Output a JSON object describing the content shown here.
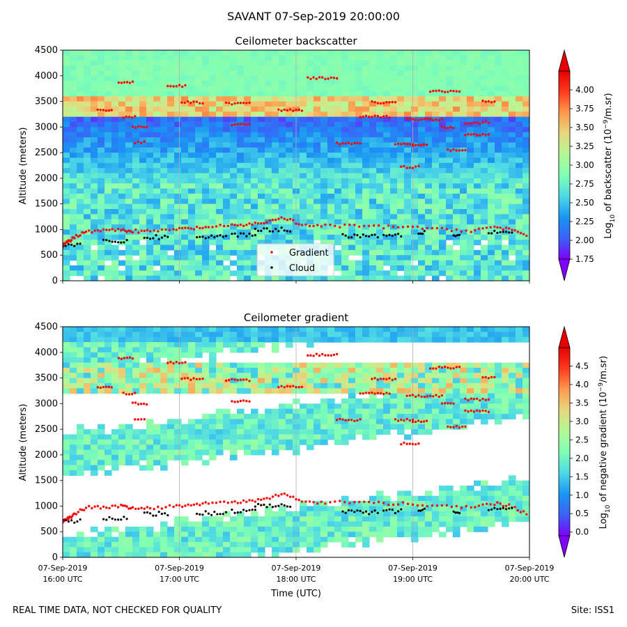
{
  "suptitle": "SAVANT 07-Sep-2019 20:00:00",
  "footer": {
    "note": "REAL TIME DATA, NOT CHECKED FOR QUALITY",
    "site": "Site: ISS1"
  },
  "colors": {
    "gradient_markers": "#ff0000",
    "cloud_markers": "#000000",
    "colormap": [
      "#7f00ff",
      "#3b62f6",
      "#1996f3",
      "#4dd8e6",
      "#80ffb4",
      "#b3f896",
      "#e6d87e",
      "#ff9a4d",
      "#ff3b1e",
      "#e60000"
    ]
  },
  "chart_data": [
    {
      "type": "heatmap",
      "title": "Ceilometer backscatter",
      "xlabel": "",
      "ylabel": "Altitude (meters)",
      "ylim": [
        0,
        4500
      ],
      "xlim": [
        "07-Sep-2019 16:00 UTC",
        "07-Sep-2019 20:00 UTC"
      ],
      "yticks": [
        "0",
        "500",
        "1000",
        "1500",
        "2000",
        "2500",
        "3000",
        "3500",
        "4000",
        "4500"
      ],
      "colorbar": {
        "label_pre": "Log",
        "label_sub": "10",
        "label_mid": " of backscatter (10",
        "label_sup": "−9",
        "label_post": "/m.sr)",
        "range": [
          1.75,
          4.25
        ],
        "ticks": [
          "1.75",
          "2.00",
          "2.25",
          "2.50",
          "2.75",
          "3.00",
          "3.25",
          "3.50",
          "3.75",
          "4.00"
        ]
      },
      "legend": {
        "position": "lower center",
        "entries": [
          {
            "name": "Gradient",
            "color": "#ff0000"
          },
          {
            "name": "Cloud",
            "color": "#000000"
          }
        ]
      },
      "grid": "vertical only"
    },
    {
      "type": "heatmap",
      "title": "Ceilometer gradient",
      "xlabel": "Time (UTC)",
      "ylabel": "Altitude (meters)",
      "ylim": [
        0,
        4500
      ],
      "yticks": [
        "0",
        "500",
        "1000",
        "1500",
        "2000",
        "2500",
        "3000",
        "3500",
        "4000",
        "4500"
      ],
      "xticks": [
        {
          "date": "07-Sep-2019",
          "time": "16:00 UTC"
        },
        {
          "date": "07-Sep-2019",
          "time": "17:00 UTC"
        },
        {
          "date": "07-Sep-2019",
          "time": "18:00 UTC"
        },
        {
          "date": "07-Sep-2019",
          "time": "19:00 UTC"
        },
        {
          "date": "07-Sep-2019",
          "time": "20:00 UTC"
        }
      ],
      "colorbar": {
        "label_pre": "Log",
        "label_sub": "10",
        "label_mid": " of negative gradient (10",
        "label_sup": "−9",
        "label_post": "/m.sr)",
        "range": [
          -0.1,
          5.0
        ],
        "ticks": [
          "0.0",
          "0.5",
          "1.0",
          "1.5",
          "2.0",
          "2.5",
          "3.0",
          "3.5",
          "4.0",
          "4.5"
        ]
      },
      "grid": "vertical only"
    }
  ],
  "series": {
    "boundary_layer_gradient": [
      {
        "t": 0.0,
        "alt": 700
      },
      {
        "t": 0.05,
        "alt": 760
      },
      {
        "t": 0.1,
        "alt": 850
      },
      {
        "t": 0.2,
        "alt": 970
      },
      {
        "t": 0.35,
        "alt": 980
      },
      {
        "t": 0.5,
        "alt": 1000
      },
      {
        "t": 0.6,
        "alt": 970
      },
      {
        "t": 0.75,
        "alt": 960
      },
      {
        "t": 0.95,
        "alt": 1000
      },
      {
        "t": 1.1,
        "alt": 1020
      },
      {
        "t": 1.25,
        "alt": 1050
      },
      {
        "t": 1.45,
        "alt": 1070
      },
      {
        "t": 1.6,
        "alt": 1100
      },
      {
        "t": 1.75,
        "alt": 1150
      },
      {
        "t": 1.9,
        "alt": 1230
      },
      {
        "t": 2.05,
        "alt": 1080
      },
      {
        "t": 2.25,
        "alt": 1070
      },
      {
        "t": 2.5,
        "alt": 1070
      },
      {
        "t": 2.75,
        "alt": 1050
      },
      {
        "t": 3.0,
        "alt": 1050
      },
      {
        "t": 3.25,
        "alt": 1000
      },
      {
        "t": 3.5,
        "alt": 980
      },
      {
        "t": 3.7,
        "alt": 1050
      },
      {
        "t": 3.85,
        "alt": 1000
      },
      {
        "t": 4.0,
        "alt": 820
      }
    ],
    "high_layers_gradient": [
      {
        "t0": 0.3,
        "t1": 0.42,
        "alt": 3330
      },
      {
        "t0": 0.52,
        "t1": 0.62,
        "alt": 3200
      },
      {
        "t0": 0.6,
        "t1": 0.72,
        "alt": 3000
      },
      {
        "t0": 0.62,
        "t1": 0.7,
        "alt": 2700
      },
      {
        "t0": 0.48,
        "t1": 0.6,
        "alt": 3880
      },
      {
        "t0": 0.9,
        "t1": 1.05,
        "alt": 3800
      },
      {
        "t0": 1.02,
        "t1": 1.2,
        "alt": 3480
      },
      {
        "t0": 1.4,
        "t1": 1.6,
        "alt": 3460
      },
      {
        "t0": 1.45,
        "t1": 1.6,
        "alt": 3050
      },
      {
        "t0": 2.1,
        "t1": 2.35,
        "alt": 3950
      },
      {
        "t0": 2.35,
        "t1": 2.55,
        "alt": 2680
      },
      {
        "t0": 2.55,
        "t1": 2.8,
        "alt": 3200
      },
      {
        "t0": 2.85,
        "t1": 3.0,
        "alt": 2680
      },
      {
        "t0": 2.9,
        "t1": 3.05,
        "alt": 2220
      },
      {
        "t0": 2.95,
        "t1": 3.25,
        "alt": 3150
      },
      {
        "t0": 3.15,
        "t1": 3.4,
        "alt": 3700
      },
      {
        "t0": 3.25,
        "t1": 3.35,
        "alt": 3000
      },
      {
        "t0": 3.45,
        "t1": 3.65,
        "alt": 3080
      },
      {
        "t0": 3.45,
        "t1": 3.65,
        "alt": 2850
      },
      {
        "t0": 3.6,
        "t1": 3.7,
        "alt": 3500
      },
      {
        "t0": 3.3,
        "t1": 3.45,
        "alt": 2550
      },
      {
        "t0": 2.65,
        "t1": 2.85,
        "alt": 3480
      },
      {
        "t0": 3.0,
        "t1": 3.12,
        "alt": 2650
      },
      {
        "t0": 1.85,
        "t1": 2.05,
        "alt": 3330
      }
    ],
    "cloud_base": [
      {
        "t0": 0.0,
        "t1": 0.15,
        "alt": 700
      },
      {
        "t0": 0.35,
        "t1": 0.55,
        "alt": 760
      },
      {
        "t0": 0.7,
        "t1": 0.9,
        "alt": 850
      },
      {
        "t0": 1.15,
        "t1": 1.4,
        "alt": 860
      },
      {
        "t0": 1.45,
        "t1": 1.65,
        "alt": 900
      },
      {
        "t0": 1.65,
        "t1": 1.95,
        "alt": 1000
      },
      {
        "t0": 2.4,
        "t1": 2.7,
        "alt": 880
      },
      {
        "t0": 2.75,
        "t1": 2.9,
        "alt": 900
      },
      {
        "t0": 3.05,
        "t1": 3.1,
        "alt": 950
      },
      {
        "t0": 3.35,
        "t1": 3.4,
        "alt": 900
      },
      {
        "t0": 3.65,
        "t1": 3.85,
        "alt": 950
      }
    ]
  }
}
